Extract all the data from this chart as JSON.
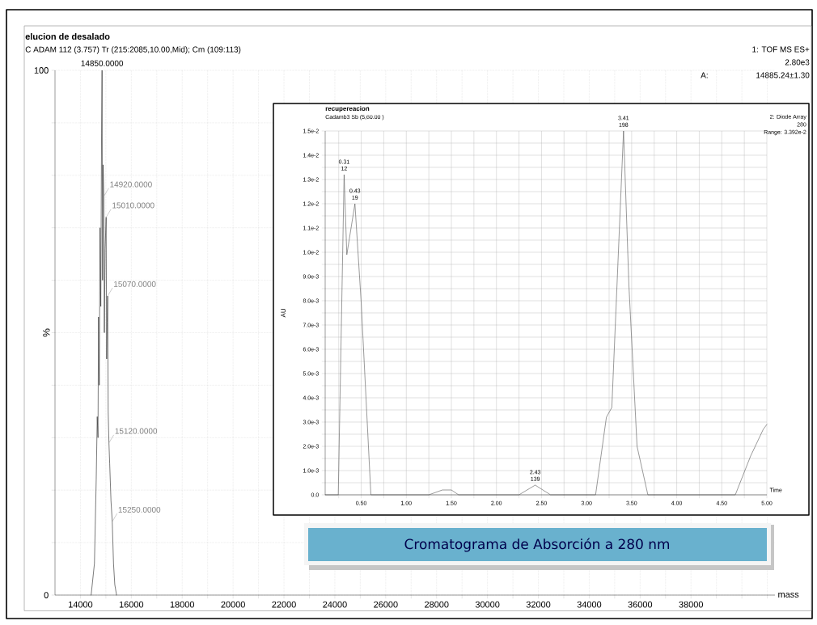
{
  "chart_data": [
    {
      "type": "line",
      "title": "elucion de desalado",
      "subtitle": "C ADAM  112 (3.757) Tr (215:2085,10.00,Mid); Cm (109:113)",
      "xlabel": "mass",
      "ylabel": "%",
      "color": "#222222",
      "x": [
        14420,
        14550,
        14620,
        14660,
        14690,
        14710,
        14740,
        14770,
        14800,
        14830,
        14850,
        14870,
        14890,
        14920,
        14940,
        14970,
        15010,
        15030,
        15050,
        15070,
        15090,
        15120,
        15150,
        15200,
        15250,
        15300,
        15350,
        15420
      ],
      "values": [
        0,
        6,
        22,
        34,
        30,
        53,
        40,
        70,
        55,
        88,
        100,
        60,
        82,
        76,
        50,
        66,
        72,
        45,
        52,
        57,
        35,
        29,
        25,
        18,
        14,
        6,
        2,
        0
      ],
      "xlim": [
        13000,
        41300
      ],
      "ylim": [
        0,
        100
      ],
      "xticks": [
        14000,
        {
          "value": 15000,
          "label": null
        },
        16000,
        {
          "value": 17000,
          "label": null
        },
        18000,
        {
          "value": 19000,
          "label": null
        },
        20000,
        {
          "value": 21000,
          "label": null
        },
        22000,
        {
          "value": 23000,
          "label": null
        },
        24000,
        {
          "value": 25000,
          "label": null
        },
        26000,
        {
          "value": 27000,
          "label": null
        },
        28000,
        {
          "value": 29000,
          "label": null
        },
        30000,
        {
          "value": 31000,
          "label": null
        },
        32000,
        {
          "value": 33000,
          "label": null
        },
        34000,
        {
          "value": 35000,
          "label": null
        },
        36000,
        {
          "value": 37000,
          "label": null
        },
        38000,
        {
          "value": 39000,
          "label": null
        },
        {
          "value": 40000,
          "label": null
        },
        {
          "value": 41000,
          "label": null
        }
      ],
      "yticks": [
        0,
        {
          "value": 10,
          "label": null
        },
        {
          "value": 20,
          "label": null
        },
        {
          "value": 30,
          "label": null
        },
        {
          "value": 40,
          "label": null
        },
        {
          "value": 50,
          "label": null
        },
        {
          "value": 60,
          "label": null
        },
        {
          "value": 70,
          "label": null
        },
        {
          "value": 80,
          "label": null
        },
        {
          "value": 90,
          "label": null
        },
        100
      ],
      "grid": true,
      "annotations": [
        {
          "text": "14850.0000",
          "x": 14850,
          "y": 100
        },
        {
          "text": "14920.0000",
          "x": 14920,
          "y": 76
        },
        {
          "text": "15010.0000",
          "x": 15010,
          "y": 72
        },
        {
          "text": "15070.0000",
          "x": 15070,
          "y": 57
        },
        {
          "text": "15120.0000",
          "x": 15120,
          "y": 29
        },
        {
          "text": "15250.0000",
          "x": 15250,
          "y": 14
        },
        "1: TOF MS ES+",
        "2.80e3",
        "A:",
        "14885.24±1.30"
      ]
    },
    {
      "type": "line",
      "title": "recupereacion",
      "subtitle": "Cadamb3 Sb (5,60.00 )",
      "xlabel": "Time",
      "ylabel": "AU",
      "color": "#555555",
      "x": [
        0.1,
        0.245,
        0.31,
        0.34,
        0.43,
        0.5,
        0.607,
        1.25,
        1.4,
        1.5,
        1.58,
        2.25,
        2.43,
        2.6,
        3.1,
        3.22,
        3.28,
        3.41,
        3.47,
        3.56,
        3.68,
        4.65,
        4.82,
        4.96,
        5.0
      ],
      "values": [
        0,
        0,
        0.0132,
        0.0099,
        0.012,
        0.0079,
        0,
        0,
        0.0002,
        0.0002,
        0,
        0,
        0.0004,
        0,
        0,
        0.0032,
        0.0036,
        0.015,
        0.0086,
        0.002,
        0,
        0,
        0.0016,
        0.0027,
        0.0029
      ],
      "xlim": [
        0.1,
        5.0
      ],
      "ylim": [
        0,
        0.015
      ],
      "xticks": [
        {
          "value": 0.25,
          "label": null
        },
        {
          "value": 0.5,
          "label": "0.50"
        },
        {
          "value": 0.75,
          "label": null
        },
        {
          "value": 1.0,
          "label": "1.00"
        },
        {
          "value": 1.25,
          "label": null
        },
        {
          "value": 1.5,
          "label": "1.50"
        },
        {
          "value": 1.75,
          "label": null
        },
        {
          "value": 2.0,
          "label": "2.00"
        },
        {
          "value": 2.25,
          "label": null
        },
        {
          "value": 2.5,
          "label": "2.50"
        },
        {
          "value": 2.75,
          "label": null
        },
        {
          "value": 3.0,
          "label": "3.00"
        },
        {
          "value": 3.25,
          "label": null
        },
        {
          "value": 3.5,
          "label": "3.50"
        },
        {
          "value": 3.75,
          "label": null
        },
        {
          "value": 4.0,
          "label": "4.00"
        },
        {
          "value": 4.25,
          "label": null
        },
        {
          "value": 4.5,
          "label": "4.50"
        },
        {
          "value": 4.75,
          "label": null
        },
        {
          "value": 5.0,
          "label": "5.00"
        }
      ],
      "yticks": [
        {
          "value": 0,
          "label": "0.0"
        },
        {
          "value": 0.0005,
          "label": null
        },
        {
          "value": 0.001,
          "label": "1.0e-3"
        },
        {
          "value": 0.0015,
          "label": null
        },
        {
          "value": 0.002,
          "label": "2.0e-3"
        },
        {
          "value": 0.0025,
          "label": null
        },
        {
          "value": 0.003,
          "label": "3.0e-3"
        },
        {
          "value": 0.0035,
          "label": null
        },
        {
          "value": 0.004,
          "label": "4.0e-3"
        },
        {
          "value": 0.0045,
          "label": null
        },
        {
          "value": 0.005,
          "label": "5.0e-3"
        },
        {
          "value": 0.0055,
          "label": null
        },
        {
          "value": 0.006,
          "label": "6.0e-3"
        },
        {
          "value": 0.0065,
          "label": null
        },
        {
          "value": 0.007,
          "label": "7.0e-3"
        },
        {
          "value": 0.0075,
          "label": null
        },
        {
          "value": 0.008,
          "label": "8.0e-3"
        },
        {
          "value": 0.0085,
          "label": null
        },
        {
          "value": 0.009,
          "label": "9.0e-3"
        },
        {
          "value": 0.0095,
          "label": null
        },
        {
          "value": 0.01,
          "label": "1.0e-2"
        },
        {
          "value": 0.0105,
          "label": null
        },
        {
          "value": 0.011,
          "label": "1.1e-2"
        },
        {
          "value": 0.0115,
          "label": null
        },
        {
          "value": 0.012,
          "label": "1.2e-2"
        },
        {
          "value": 0.0125,
          "label": null
        },
        {
          "value": 0.013,
          "label": "1.3e-2"
        },
        {
          "value": 0.0135,
          "label": null
        },
        {
          "value": 0.014,
          "label": "1.4e-2"
        },
        {
          "value": 0.0145,
          "label": null
        },
        {
          "value": 0.015,
          "label": "1.5e-2"
        }
      ],
      "grid": true,
      "annotations": [
        {
          "text": "0.31 12",
          "x": 0.31,
          "y": 0.0132
        },
        {
          "text": "0.43 19",
          "x": 0.43,
          "y": 0.012
        },
        {
          "text": "2.43 139",
          "x": 2.43,
          "y": 0.0004
        },
        {
          "text": "3.41 198",
          "x": 3.41,
          "y": 0.015
        },
        "2: Diode Array",
        "280",
        "Range: 3.392e-2",
        "Cromatograma de Absorción a 280 nm"
      ]
    }
  ]
}
